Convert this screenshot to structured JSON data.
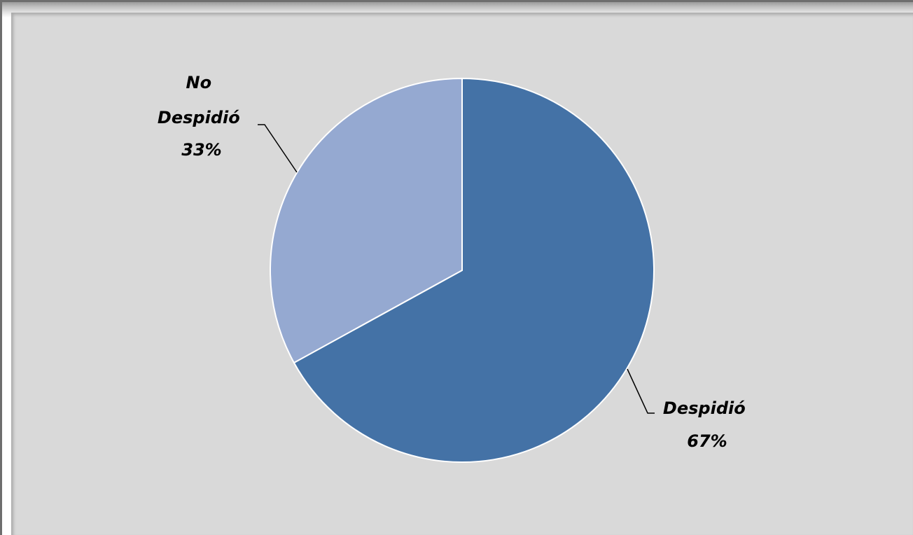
{
  "chart_data": {
    "type": "pie",
    "title": "",
    "slices": [
      {
        "label": "Despidió",
        "value": 67,
        "percent_label": "67%",
        "color": "#4472a6"
      },
      {
        "label": "No Despidió",
        "value": 33,
        "percent_label": "33%",
        "color": "#95a9d1"
      }
    ],
    "start_angle_deg": 0,
    "direction": "clockwise",
    "legend": "none",
    "data_labels": "outside-with-leader-lines"
  }
}
